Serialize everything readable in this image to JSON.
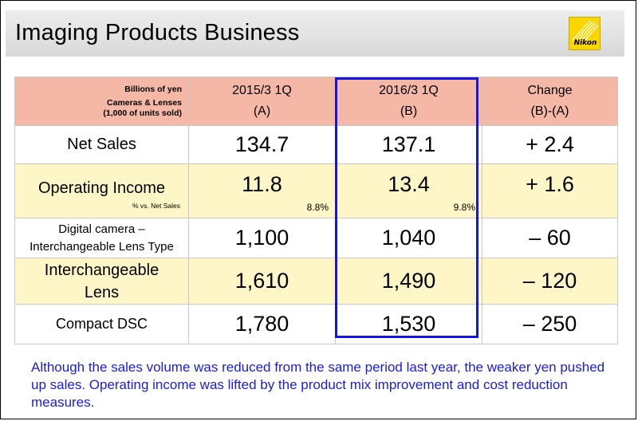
{
  "title": "Imaging Products Business",
  "logo_text": "Nikon",
  "brand_color": "#f9d600",
  "highlight_color": "#1515e0",
  "header": {
    "units_line1": "Billions of yen",
    "units_line2": "Cameras & Lenses",
    "units_line3": "(1,000 of units sold)",
    "col_a_line1": "2015/3 1Q",
    "col_a_line2": "(A)",
    "col_b_line1": "2016/3 1Q",
    "col_b_line2": "(B)",
    "col_c_line1": "Change",
    "col_c_line2": "(B)-(A)"
  },
  "rows": [
    {
      "label": "Net Sales",
      "a": "134.7",
      "b": "137.1",
      "change": "+ 2.4"
    },
    {
      "label": "Operating Income",
      "note": "% vs. Net Sales",
      "a": "11.8",
      "a_pct": "8.8%",
      "b": "13.4",
      "b_pct": "9.8%",
      "change": "+ 1.6"
    },
    {
      "label_line1": "Digital camera –",
      "label_line2": "Interchangeable Lens Type",
      "a": "1,100",
      "b": "1,040",
      "change": "– 60"
    },
    {
      "label_line1": "Interchangeable",
      "label_line2": "Lens",
      "a": "1,610",
      "b": "1,490",
      "change": "– 120"
    },
    {
      "label": "Compact DSC",
      "a": "1,780",
      "b": "1,530",
      "change": "– 250"
    }
  ],
  "summary": "Although the sales volume was reduced from the same period last year, the weaker yen pushed up sales. Operating income was lifted by the product mix improvement and cost reduction measures."
}
